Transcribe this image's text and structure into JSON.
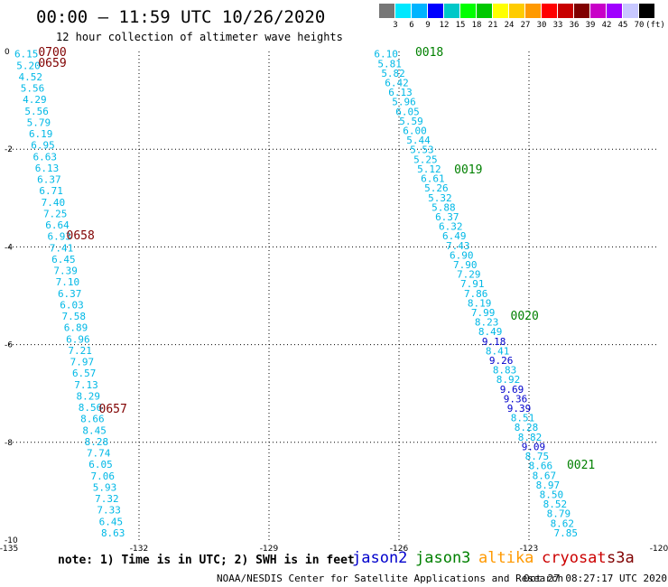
{
  "header": {
    "title": "00:00 – 11:59 UTC 10/26/2020",
    "subtitle": "12 hour collection of altimeter wave heights"
  },
  "legend": {
    "colors": [
      "#777777",
      "#00e8ff",
      "#00b4ff",
      "#0000ff",
      "#00c8c8",
      "#00ff00",
      "#00c800",
      "#ffff00",
      "#ffcc00",
      "#ff9900",
      "#ff0000",
      "#c80000",
      "#800000",
      "#c800c8",
      "#a000ff",
      "#c8c8ff",
      "#000000"
    ],
    "labels": [
      "3",
      "6",
      "9",
      "12",
      "15",
      "18",
      "21",
      "24",
      "27",
      "30",
      "33",
      "36",
      "39",
      "42",
      "45",
      "70",
      "(ft)"
    ]
  },
  "footer": {
    "note": "note: 1) Time is in UTC; 2) SWH is in feet",
    "satellites": [
      {
        "name": "jason2",
        "color": "#0000cc"
      },
      {
        "name": "jason3",
        "color": "#008000"
      },
      {
        "name": "altika",
        "color": "#ff9900"
      },
      {
        "name": "cryosat",
        "color": "#cc0000"
      },
      {
        "name": "s3a",
        "color": "#800000"
      }
    ],
    "credit": "NOAA/NESDIS Center for Satellite Applications and Research",
    "timestamp": "Oct 27 08:27:17 UTC 2020"
  },
  "chart_data": {
    "type": "scatter",
    "title": "00:00 – 11:59 UTC 10/26/2020",
    "xlim": [
      -135,
      -120
    ],
    "ylim": [
      -10,
      0
    ],
    "x_ticks": [
      "-135",
      "-132",
      "-129",
      "-126",
      "-123",
      "-120"
    ],
    "y_ticks": [
      "0",
      "-2",
      "-4",
      "-6",
      "-8",
      "-10"
    ],
    "grid": true,
    "tracks": [
      {
        "name": "track-west",
        "x_start": -134.6,
        "y_start": -0.05,
        "x_end": -132.6,
        "y_end": -9.85,
        "values": [
          "6.15",
          "5.20",
          "4.52",
          "5.56",
          "4.29",
          "5.56",
          "5.79",
          "6.19",
          "6.95",
          "6.63",
          "6.13",
          "6.37",
          "6.71",
          "7.40",
          "7.25",
          "6.64",
          "6.93",
          "7.41",
          "6.45",
          "7.39",
          "7.10",
          "6.37",
          "6.03",
          "7.58",
          "6.89",
          "6.96",
          "7.21",
          "7.97",
          "6.57",
          "7.13",
          "8.29",
          "8.56",
          "8.66",
          "8.45",
          "8.28",
          "7.74",
          "6.05",
          "7.06",
          "5.93",
          "7.32",
          "7.33",
          "6.45",
          "8.63"
        ],
        "colors": [
          "c",
          "c",
          "c",
          "c",
          "c",
          "c",
          "c",
          "c",
          "c",
          "c",
          "c",
          "c",
          "c",
          "c",
          "c",
          "c",
          "c",
          "c",
          "c",
          "c",
          "c",
          "c",
          "c",
          "c",
          "c",
          "c",
          "c",
          "c",
          "c",
          "c",
          "c",
          "c",
          "c",
          "c",
          "c",
          "c",
          "c",
          "c",
          "c",
          "c",
          "c",
          "c",
          "c"
        ],
        "time_labels": [
          {
            "text": "0700",
            "x": -134.0,
            "y": 0.0,
            "color": "#800000"
          },
          {
            "text": "0659",
            "x": -134.0,
            "y": -0.22,
            "color": "#800000"
          },
          {
            "text": "0658",
            "x": -133.35,
            "y": -3.75,
            "color": "#800000"
          },
          {
            "text": "0657",
            "x": -132.6,
            "y": -7.3,
            "color": "#800000"
          }
        ]
      },
      {
        "name": "track-east",
        "x_start": -126.3,
        "y_start": -0.05,
        "x_end": -122.15,
        "y_end": -9.85,
        "values": [
          "6.10",
          "5.81",
          "5.82",
          "6.42",
          "6.13",
          "5.96",
          "6.05",
          "5.59",
          "6.00",
          "5.44",
          "5.53",
          "5.25",
          "5.12",
          "6.61",
          "5.26",
          "5.32",
          "5.88",
          "6.37",
          "6.32",
          "6.49",
          "7.43",
          "6.90",
          "7.90",
          "7.29",
          "7.91",
          "7.86",
          "8.19",
          "7.99",
          "8.23",
          "8.49",
          "9.18",
          "8.41",
          "9.26",
          "8.83",
          "8.92",
          "9.69",
          "9.36",
          "9.39",
          "8.51",
          "8.28",
          "8.82",
          "9.09",
          "8.75",
          "8.66",
          "8.67",
          "8.97",
          "8.50",
          "8.52",
          "8.79",
          "8.62",
          "7.85"
        ],
        "colors": [
          "c",
          "c",
          "c",
          "c",
          "c",
          "c",
          "c",
          "c",
          "c",
          "c",
          "c",
          "c",
          "c",
          "c",
          "c",
          "c",
          "c",
          "c",
          "c",
          "c",
          "c",
          "c",
          "c",
          "c",
          "c",
          "c",
          "c",
          "c",
          "c",
          "c",
          "b",
          "c",
          "b",
          "c",
          "c",
          "b",
          "b",
          "b",
          "c",
          "c",
          "c",
          "b",
          "c",
          "c",
          "c",
          "c",
          "c",
          "c",
          "c",
          "c",
          "c"
        ],
        "time_labels": [
          {
            "text": "0018",
            "x": -125.3,
            "y": 0.0,
            "color": "#008000"
          },
          {
            "text": "0019",
            "x": -124.4,
            "y": -2.4,
            "color": "#008000"
          },
          {
            "text": "0020",
            "x": -123.1,
            "y": -5.4,
            "color": "#008000"
          },
          {
            "text": "0021",
            "x": -121.8,
            "y": -8.45,
            "color": "#008000"
          }
        ]
      }
    ]
  }
}
